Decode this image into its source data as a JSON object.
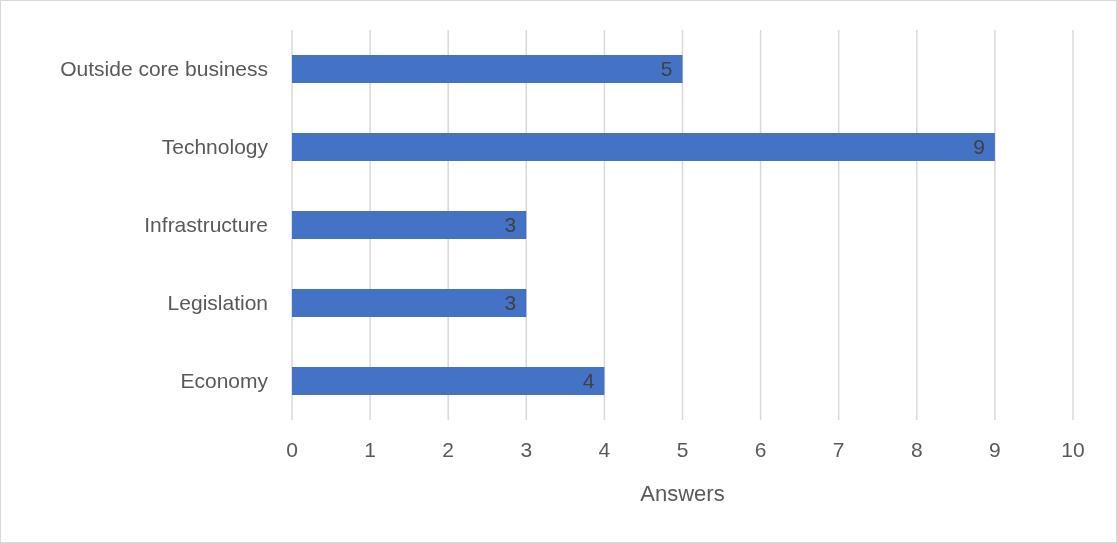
{
  "chart_data": {
    "type": "bar",
    "orientation": "horizontal",
    "xlabel": "Answers",
    "categories": [
      "Outside core business",
      "Technology",
      "Infrastructure",
      "Legislation",
      "Economy"
    ],
    "values": [
      5,
      9,
      3,
      3,
      4
    ],
    "color": "#4472c4",
    "xlim": [
      0,
      10
    ],
    "xticks": [
      0,
      1,
      2,
      3,
      4,
      5,
      6,
      7,
      8,
      9,
      10
    ],
    "grid": "x",
    "data_labels": true
  }
}
